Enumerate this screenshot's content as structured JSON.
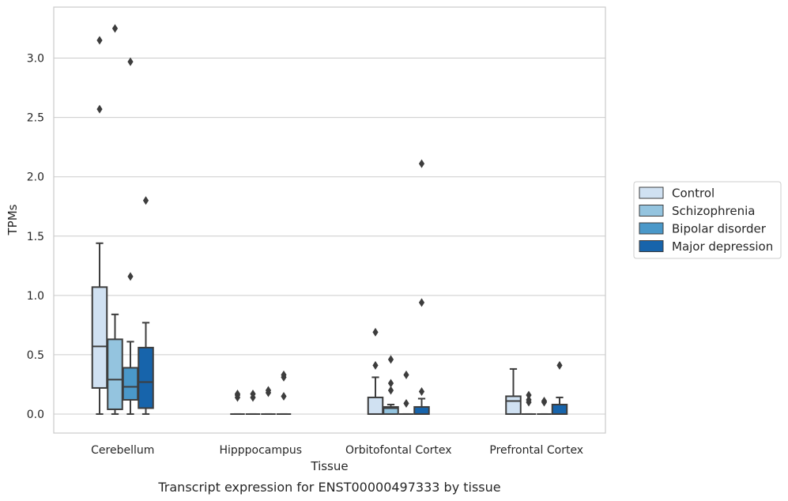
{
  "chart_data": {
    "type": "box",
    "caption": "Transcript expression for ENST00000497333 by tissue",
    "xlabel": "Tissue",
    "ylabel": "TPMs",
    "ylim": [
      -0.16,
      3.43
    ],
    "yticks": [
      "0.0",
      "0.5",
      "1.0",
      "1.5",
      "2.0",
      "2.5",
      "3.0"
    ],
    "grid": "horizontal",
    "legend_position": "right",
    "categories": [
      "Cerebellum",
      "Hipppocampus",
      "Orbitofontal Cortex",
      "Prefrontal Cortex"
    ],
    "series": [
      {
        "name": "Control",
        "color": "#d0e1f2",
        "boxes": [
          {
            "whislo": 0.0,
            "q1": 0.22,
            "med": 0.57,
            "q3": 1.07,
            "whishi": 1.44,
            "fliers": [
              2.57,
              3.15
            ]
          },
          {
            "whislo": 0.0,
            "q1": 0.0,
            "med": 0.0,
            "q3": 0.0,
            "whishi": 0.0,
            "fliers": [
              0.14,
              0.16,
              0.17
            ]
          },
          {
            "whislo": 0.0,
            "q1": 0.0,
            "med": 0.0,
            "q3": 0.14,
            "whishi": 0.31,
            "fliers": [
              0.41,
              0.69
            ]
          },
          {
            "whislo": 0.0,
            "q1": 0.0,
            "med": 0.11,
            "q3": 0.15,
            "whishi": 0.38,
            "fliers": []
          }
        ]
      },
      {
        "name": "Schizophrenia",
        "color": "#94c4df",
        "boxes": [
          {
            "whislo": 0.0,
            "q1": 0.04,
            "med": 0.29,
            "q3": 0.63,
            "whishi": 0.84,
            "fliers": [
              3.25
            ]
          },
          {
            "whislo": 0.0,
            "q1": 0.0,
            "med": 0.0,
            "q3": 0.0,
            "whishi": 0.0,
            "fliers": [
              0.14,
              0.17
            ]
          },
          {
            "whislo": 0.0,
            "q1": 0.0,
            "med": 0.05,
            "q3": 0.06,
            "whishi": 0.08,
            "fliers": [
              0.2,
              0.26,
              0.46
            ]
          },
          {
            "whislo": 0.0,
            "q1": 0.0,
            "med": 0.0,
            "q3": 0.0,
            "whishi": 0.0,
            "fliers": [
              0.1,
              0.12,
              0.16
            ]
          }
        ]
      },
      {
        "name": "Bipolar disorder",
        "color": "#4a98c9",
        "boxes": [
          {
            "whislo": 0.0,
            "q1": 0.12,
            "med": 0.23,
            "q3": 0.39,
            "whishi": 0.61,
            "fliers": [
              1.16,
              2.97
            ]
          },
          {
            "whislo": 0.0,
            "q1": 0.0,
            "med": 0.0,
            "q3": 0.0,
            "whishi": 0.0,
            "fliers": [
              0.18,
              0.2
            ]
          },
          {
            "whislo": 0.0,
            "q1": 0.0,
            "med": 0.0,
            "q3": 0.0,
            "whishi": 0.0,
            "fliers": [
              0.09,
              0.33
            ]
          },
          {
            "whislo": 0.0,
            "q1": 0.0,
            "med": 0.0,
            "q3": 0.0,
            "whishi": 0.0,
            "fliers": [
              0.1,
              0.11
            ]
          }
        ]
      },
      {
        "name": "Major depression",
        "color": "#1764ab",
        "boxes": [
          {
            "whislo": 0.0,
            "q1": 0.05,
            "med": 0.27,
            "q3": 0.56,
            "whishi": 0.77,
            "fliers": [
              1.8
            ]
          },
          {
            "whislo": 0.0,
            "q1": 0.0,
            "med": 0.0,
            "q3": 0.0,
            "whishi": 0.0,
            "fliers": [
              0.15,
              0.31,
              0.33
            ]
          },
          {
            "whislo": 0.0,
            "q1": 0.0,
            "med": 0.0,
            "q3": 0.06,
            "whishi": 0.13,
            "fliers": [
              0.19,
              0.94,
              2.11
            ]
          },
          {
            "whislo": 0.0,
            "q1": 0.0,
            "med": 0.0,
            "q3": 0.08,
            "whishi": 0.14,
            "fliers": [
              0.41
            ]
          }
        ]
      }
    ]
  }
}
